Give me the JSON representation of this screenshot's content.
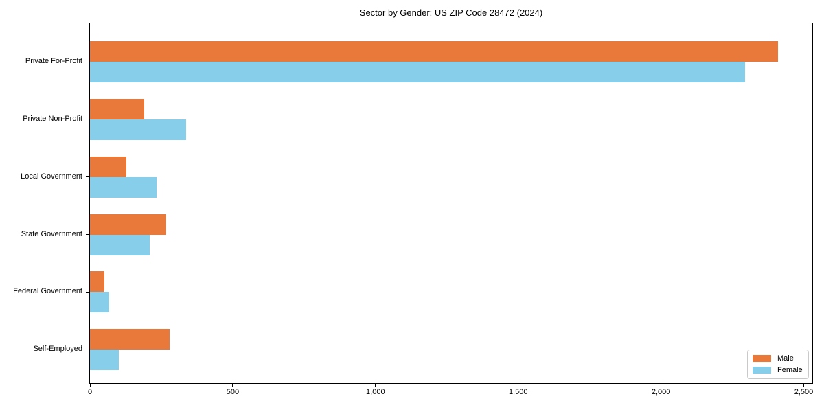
{
  "chart_data": {
    "type": "bar",
    "orientation": "horizontal",
    "title": "Sector by Gender: US ZIP Code 28472 (2024)",
    "categories": [
      "Private For-Profit",
      "Private Non-Profit",
      "Local Government",
      "State Government",
      "Federal Government",
      "Self-Employed"
    ],
    "series": [
      {
        "name": "Male",
        "color": "#E8793B",
        "values": [
          2410,
          190,
          127,
          268,
          50,
          280
        ]
      },
      {
        "name": "Female",
        "color": "#87CEEB",
        "values": [
          2295,
          336,
          234,
          210,
          68,
          100
        ]
      }
    ],
    "xlabel": "",
    "ylabel": "",
    "xlim": [
      0,
      2530
    ],
    "xticks": [
      {
        "value": 0,
        "label": "0"
      },
      {
        "value": 500,
        "label": "500"
      },
      {
        "value": 1000,
        "label": "1,000"
      },
      {
        "value": 1500,
        "label": "1,500"
      },
      {
        "value": 2000,
        "label": "2,000"
      },
      {
        "value": 2500,
        "label": "2,500"
      }
    ],
    "grid": false,
    "legend": {
      "position": "lower right",
      "entries": [
        {
          "label": "Male",
          "color": "#E8793B"
        },
        {
          "label": "Female",
          "color": "#87CEEB"
        }
      ]
    }
  }
}
